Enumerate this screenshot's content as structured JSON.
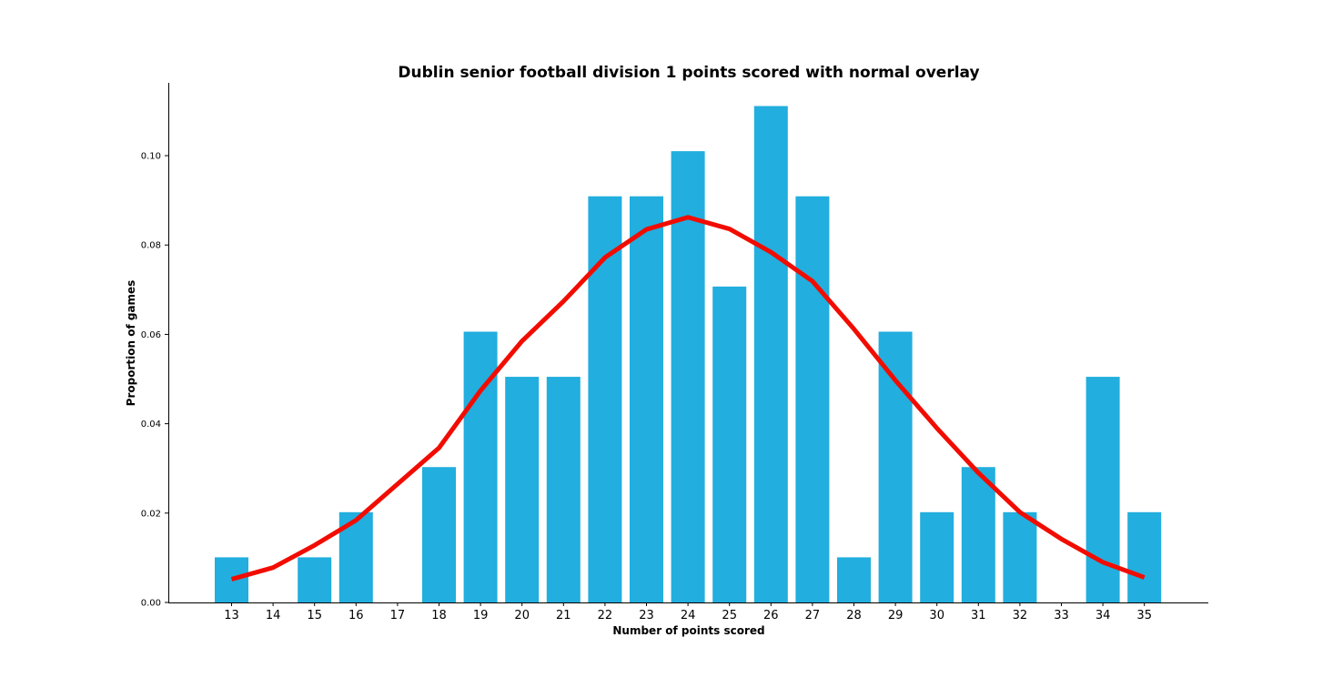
{
  "chart_data": {
    "type": "bar",
    "title": "Dublin senior football division 1 points scored with normal overlay",
    "xlabel": "Number of points scored",
    "ylabel": "Proportion of games",
    "categories": [
      "13",
      "14",
      "15",
      "16",
      "17",
      "18",
      "19",
      "20",
      "21",
      "22",
      "23",
      "24",
      "25",
      "26",
      "27",
      "28",
      "29",
      "30",
      "31",
      "32",
      "33",
      "34",
      "35"
    ],
    "yticks": [
      "0.00",
      "0.02",
      "0.04",
      "0.06",
      "0.08",
      "0.10"
    ],
    "ylim": [
      0,
      0.1163
    ],
    "grid": false,
    "legend": "none",
    "series": [
      {
        "type": "bar",
        "color": "#22AEDE",
        "values": [
          0.0101,
          0,
          0.0101,
          0.0202,
          0,
          0.0303,
          0.0606,
          0.0505,
          0.0505,
          0.0909,
          0.0909,
          0.101,
          0.0707,
          0.1111,
          0.0909,
          0.0101,
          0.0606,
          0.0202,
          0.0303,
          0.0202,
          0,
          0.0505,
          0.0202
        ]
      },
      {
        "type": "line",
        "color": "#F20C00",
        "values": [
          0.0052,
          0.0078,
          0.0128,
          0.0184,
          0.0265,
          0.0346,
          0.0474,
          0.0585,
          0.0674,
          0.0772,
          0.0835,
          0.0862,
          0.0836,
          0.0784,
          0.0719,
          0.0612,
          0.0497,
          0.039,
          0.029,
          0.0202,
          0.0142,
          0.009,
          0.0056
        ]
      }
    ]
  }
}
